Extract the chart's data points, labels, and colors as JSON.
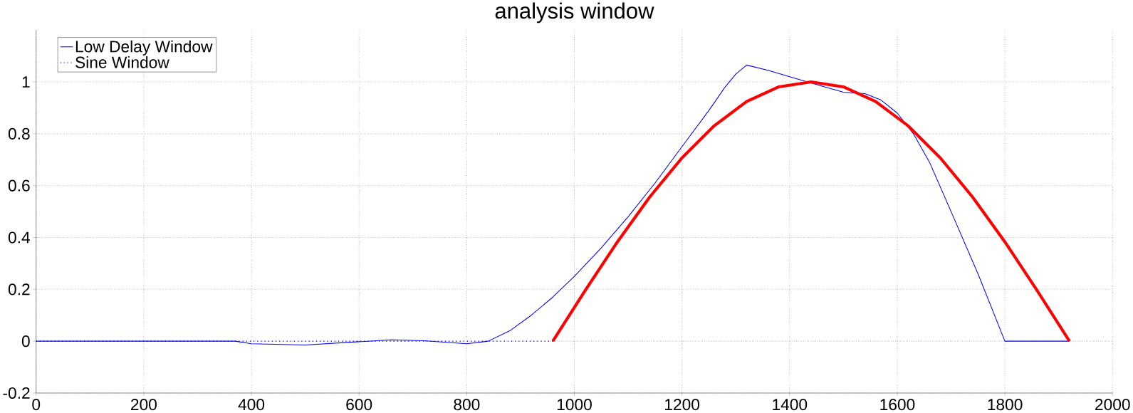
{
  "chart_data": {
    "type": "line",
    "title": "analysis window",
    "series": [
      {
        "name": "Low Delay Window",
        "color": "#0000ff",
        "line_style": "solid",
        "x": [
          0,
          370,
          400,
          500,
          600,
          660,
          720,
          800,
          840,
          880,
          920,
          960,
          1000,
          1050,
          1100,
          1150,
          1200,
          1250,
          1280,
          1300,
          1320,
          1360,
          1400,
          1450,
          1500,
          1540,
          1570,
          1600,
          1630,
          1660,
          1700,
          1750,
          1800,
          1920
        ],
        "values": [
          0,
          0,
          -0.01,
          -0.015,
          -0.002,
          0.005,
          0.002,
          -0.01,
          0,
          0.04,
          0.1,
          0.17,
          0.25,
          0.36,
          0.48,
          0.61,
          0.75,
          0.89,
          0.98,
          1.03,
          1.065,
          1.045,
          1.02,
          0.99,
          0.96,
          0.955,
          0.93,
          0.88,
          0.8,
          0.69,
          0.5,
          0.26,
          0,
          0
        ]
      },
      {
        "name": "Sine Window",
        "color": "#0000ff",
        "line_style": "dotted",
        "x": [
          0,
          960
        ],
        "values": [
          0,
          0
        ]
      },
      {
        "color": "#ff0000",
        "line_style": "solid",
        "x": [
          960,
          1020,
          1080,
          1140,
          1200,
          1260,
          1320,
          1380,
          1440,
          1500,
          1560,
          1620,
          1680,
          1740,
          1800,
          1860,
          1920
        ],
        "values": [
          0,
          0.195,
          0.383,
          0.556,
          0.707,
          0.831,
          0.924,
          0.981,
          1,
          0.981,
          0.924,
          0.831,
          0.707,
          0.556,
          0.383,
          0.195,
          0
        ]
      }
    ],
    "xlim": [
      0,
      2000
    ],
    "xticks": [
      0,
      200,
      400,
      600,
      800,
      1000,
      1200,
      1400,
      1600,
      1800,
      2000
    ],
    "ylim": [
      -0.2,
      1.2
    ],
    "yticks": [
      -0.2,
      0,
      0.2,
      0.4,
      0.6,
      0.8,
      1
    ],
    "grid": true,
    "legend": "top left"
  }
}
